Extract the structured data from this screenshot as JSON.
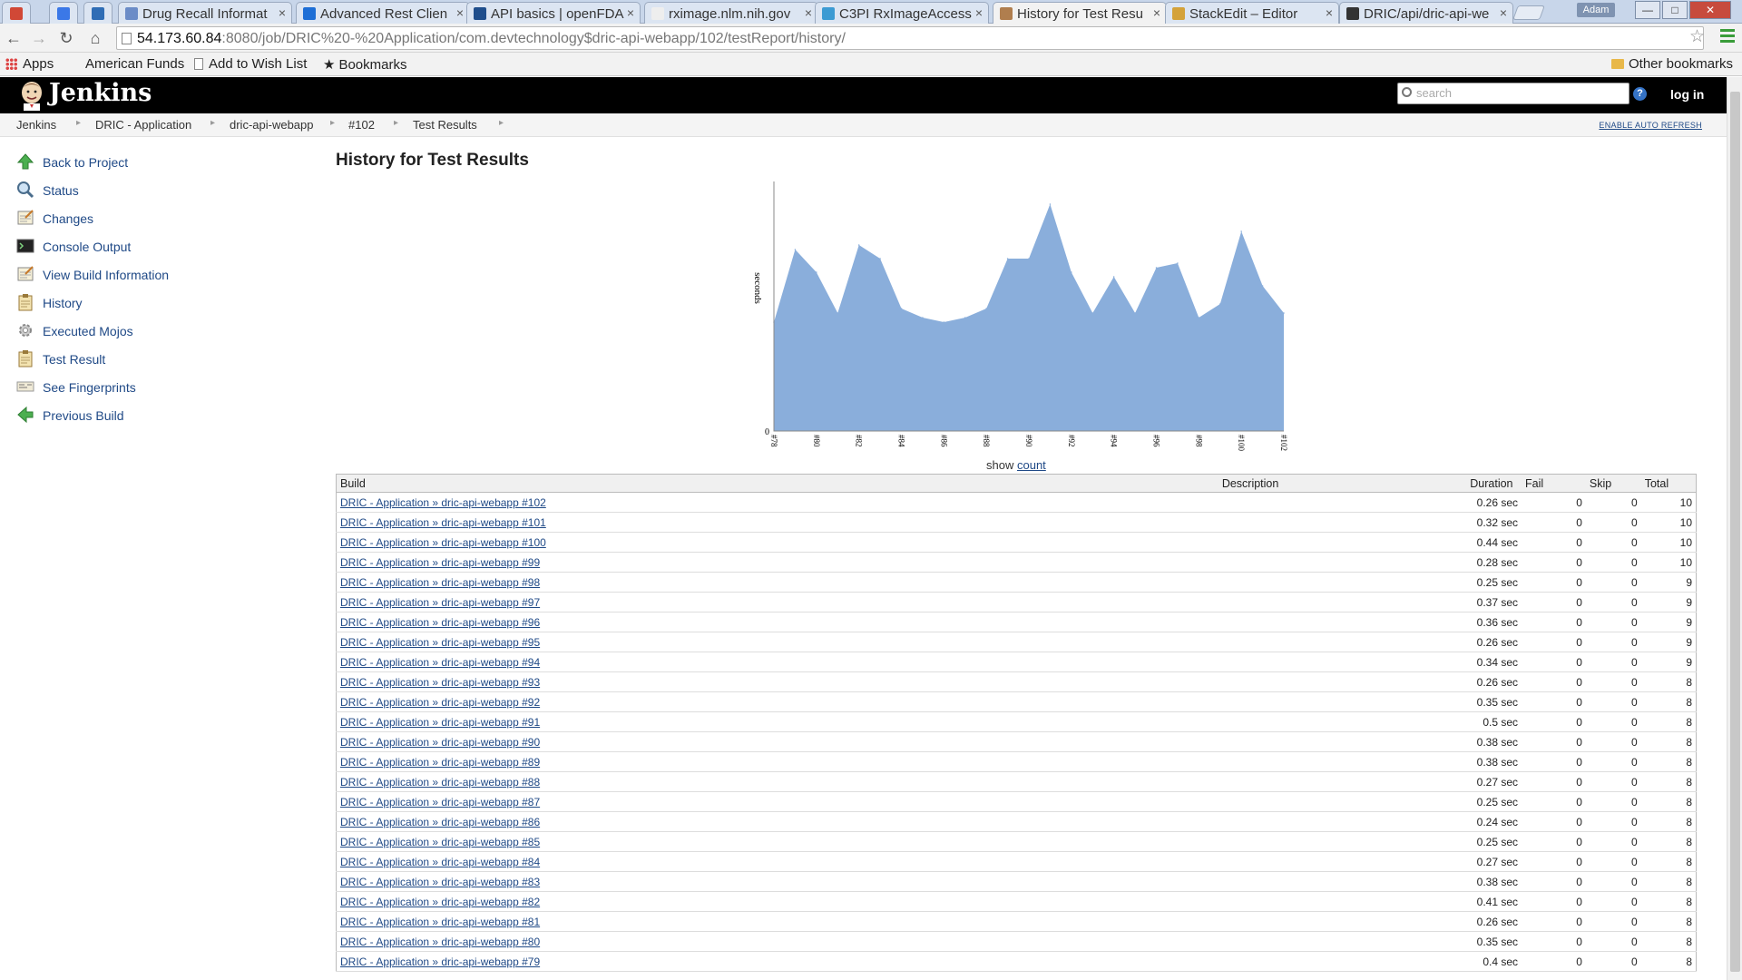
{
  "browser": {
    "tabs": [
      {
        "title": "",
        "pinned": true,
        "color": "#d14836",
        "x": 2
      },
      {
        "title": "",
        "pinned": true,
        "color": "#3b78e7",
        "x": 54
      },
      {
        "title": "",
        "pinned": true,
        "color": "#2f6db5",
        "x": 92
      },
      {
        "title": "Drug Recall Informat",
        "color": "#6b8cc7",
        "x": 130,
        "w": 192
      },
      {
        "title": "Advanced Rest Clien",
        "color": "#1d6ed6",
        "x": 326,
        "w": 192
      },
      {
        "title": "API basics | openFDA",
        "color": "#1f4e8c",
        "x": 514,
        "w": 192
      },
      {
        "title": "rximage.nlm.nih.gov",
        "color": "#eeeeee",
        "x": 710,
        "w": 192
      },
      {
        "title": "C3PI RxImageAccess",
        "color": "#3c9bd3",
        "x": 898,
        "w": 192
      },
      {
        "title": "History for Test Resu",
        "color": "#b07e4e",
        "x": 1094,
        "w": 192,
        "active": true
      },
      {
        "title": "StackEdit – Editor",
        "color": "#d4a23a",
        "x": 1284,
        "w": 192
      },
      {
        "title": "DRIC/api/dric-api-we",
        "color": "#333333",
        "x": 1476,
        "w": 192
      }
    ],
    "user_name": "Adam",
    "url_host": "54.173.60.84",
    "url_path": ":8080/job/DRIC%20-%20Application/com.devtechnology$dric-api-webapp/102/testReport/history/",
    "bookmarks": {
      "apps": "Apps",
      "american_funds": "American Funds",
      "wish_list": "Add to Wish List",
      "bookmarks": "Bookmarks",
      "other": "Other bookmarks"
    }
  },
  "jenkins": {
    "title": "Jenkins",
    "search_placeholder": "search",
    "help": "?",
    "login": "log in",
    "breadcrumbs": [
      "Jenkins",
      "DRIC - Application",
      "dric-api-webapp",
      "#102",
      "Test Results"
    ],
    "auto_refresh": "ENABLE AUTO REFRESH",
    "tasks": [
      {
        "label": "Back to Project",
        "icon": "up-arrow-icon"
      },
      {
        "label": "Status",
        "icon": "magnifier-icon"
      },
      {
        "label": "Changes",
        "icon": "notepad-icon"
      },
      {
        "label": "Console Output",
        "icon": "terminal-icon"
      },
      {
        "label": "View Build Information",
        "icon": "notepad-icon"
      },
      {
        "label": "History",
        "icon": "clipboard-icon"
      },
      {
        "label": "Executed Mojos",
        "icon": "gear-icon"
      },
      {
        "label": "Test Result",
        "icon": "clipboard-icon"
      },
      {
        "label": "See Fingerprints",
        "icon": "fingerprint-icon"
      },
      {
        "label": "Previous Build",
        "icon": "left-arrow-icon"
      }
    ],
    "page_title": "History for Test Results",
    "show_label": "show",
    "count_link": "count",
    "table": {
      "headers": {
        "build": "Build",
        "description": "Description",
        "duration": "Duration",
        "fail": "Fail",
        "skip": "Skip",
        "total": "Total"
      },
      "rows": [
        {
          "build": "DRIC - Application » dric-api-webapp #102",
          "duration": "0.26 sec",
          "fail": "0",
          "skip": "0",
          "total": "10"
        },
        {
          "build": "DRIC - Application » dric-api-webapp #101",
          "duration": "0.32 sec",
          "fail": "0",
          "skip": "0",
          "total": "10"
        },
        {
          "build": "DRIC - Application » dric-api-webapp #100",
          "duration": "0.44 sec",
          "fail": "0",
          "skip": "0",
          "total": "10"
        },
        {
          "build": "DRIC - Application » dric-api-webapp #99",
          "duration": "0.28 sec",
          "fail": "0",
          "skip": "0",
          "total": "10"
        },
        {
          "build": "DRIC - Application » dric-api-webapp #98",
          "duration": "0.25 sec",
          "fail": "0",
          "skip": "0",
          "total": "9"
        },
        {
          "build": "DRIC - Application » dric-api-webapp #97",
          "duration": "0.37 sec",
          "fail": "0",
          "skip": "0",
          "total": "9"
        },
        {
          "build": "DRIC - Application » dric-api-webapp #96",
          "duration": "0.36 sec",
          "fail": "0",
          "skip": "0",
          "total": "9"
        },
        {
          "build": "DRIC - Application » dric-api-webapp #95",
          "duration": "0.26 sec",
          "fail": "0",
          "skip": "0",
          "total": "9"
        },
        {
          "build": "DRIC - Application » dric-api-webapp #94",
          "duration": "0.34 sec",
          "fail": "0",
          "skip": "0",
          "total": "9"
        },
        {
          "build": "DRIC - Application » dric-api-webapp #93",
          "duration": "0.26 sec",
          "fail": "0",
          "skip": "0",
          "total": "8"
        },
        {
          "build": "DRIC - Application » dric-api-webapp #92",
          "duration": "0.35 sec",
          "fail": "0",
          "skip": "0",
          "total": "8"
        },
        {
          "build": "DRIC - Application » dric-api-webapp #91",
          "duration": "0.5 sec",
          "fail": "0",
          "skip": "0",
          "total": "8"
        },
        {
          "build": "DRIC - Application » dric-api-webapp #90",
          "duration": "0.38 sec",
          "fail": "0",
          "skip": "0",
          "total": "8"
        },
        {
          "build": "DRIC - Application » dric-api-webapp #89",
          "duration": "0.38 sec",
          "fail": "0",
          "skip": "0",
          "total": "8"
        },
        {
          "build": "DRIC - Application » dric-api-webapp #88",
          "duration": "0.27 sec",
          "fail": "0",
          "skip": "0",
          "total": "8"
        },
        {
          "build": "DRIC - Application » dric-api-webapp #87",
          "duration": "0.25 sec",
          "fail": "0",
          "skip": "0",
          "total": "8"
        },
        {
          "build": "DRIC - Application » dric-api-webapp #86",
          "duration": "0.24 sec",
          "fail": "0",
          "skip": "0",
          "total": "8"
        },
        {
          "build": "DRIC - Application » dric-api-webapp #85",
          "duration": "0.25 sec",
          "fail": "0",
          "skip": "0",
          "total": "8"
        },
        {
          "build": "DRIC - Application » dric-api-webapp #84",
          "duration": "0.27 sec",
          "fail": "0",
          "skip": "0",
          "total": "8"
        },
        {
          "build": "DRIC - Application » dric-api-webapp #83",
          "duration": "0.38 sec",
          "fail": "0",
          "skip": "0",
          "total": "8"
        },
        {
          "build": "DRIC - Application » dric-api-webapp #82",
          "duration": "0.41 sec",
          "fail": "0",
          "skip": "0",
          "total": "8"
        },
        {
          "build": "DRIC - Application » dric-api-webapp #81",
          "duration": "0.26 sec",
          "fail": "0",
          "skip": "0",
          "total": "8"
        },
        {
          "build": "DRIC - Application » dric-api-webapp #80",
          "duration": "0.35 sec",
          "fail": "0",
          "skip": "0",
          "total": "8"
        },
        {
          "build": "DRIC - Application » dric-api-webapp #79",
          "duration": "0.4 sec",
          "fail": "0",
          "skip": "0",
          "total": "8"
        }
      ]
    }
  },
  "chart_data": {
    "type": "area",
    "title": "",
    "xlabel": "",
    "ylabel": "seconds",
    "ytick_labels": [
      "0"
    ],
    "ylim": [
      0,
      0.55
    ],
    "x": [
      "#78",
      "#79",
      "#80",
      "#81",
      "#82",
      "#83",
      "#84",
      "#85",
      "#86",
      "#87",
      "#88",
      "#89",
      "#90",
      "#91",
      "#92",
      "#93",
      "#94",
      "#95",
      "#96",
      "#97",
      "#98",
      "#99",
      "#100",
      "#101",
      "#102"
    ],
    "xtick_labels": [
      "#78",
      "#80",
      "#82",
      "#84",
      "#86",
      "#88",
      "#90",
      "#92",
      "#94",
      "#96",
      "#98",
      "#100",
      "#102"
    ],
    "series": [
      {
        "values": [
          0.24,
          0.4,
          0.35,
          0.26,
          0.41,
          0.38,
          0.27,
          0.25,
          0.24,
          0.25,
          0.27,
          0.38,
          0.38,
          0.5,
          0.35,
          0.26,
          0.34,
          0.26,
          0.36,
          0.37,
          0.25,
          0.28,
          0.44,
          0.32,
          0.26
        ]
      }
    ],
    "color": "#8aaedb",
    "grid": false,
    "legend": "none"
  }
}
